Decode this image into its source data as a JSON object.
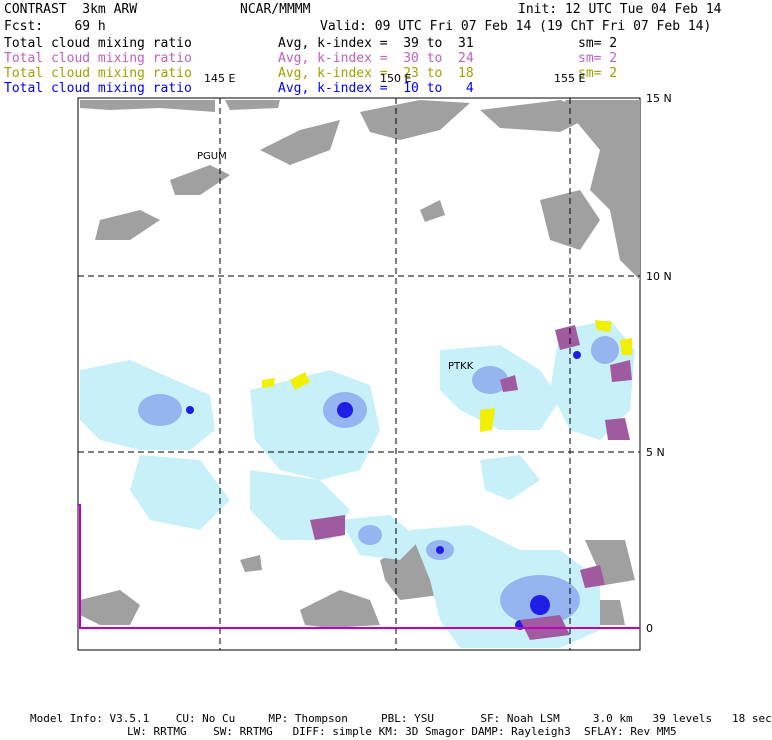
{
  "header": {
    "title": "CONTRAST  3km ARW",
    "org": "NCAR/MMMM",
    "init": "Init: 12 UTC Tue 04 Feb 14",
    "fcst": "Fcst:    69 h",
    "valid": "Valid: 09 UTC Fri 07 Feb 14 (19 ChT Fri 07 Feb 14)"
  },
  "legend": [
    {
      "field": "Total cloud mixing ratio",
      "range": "Avg, k-index =  39 to  31",
      "sm": "sm= 2",
      "color": "#000000"
    },
    {
      "field": "Total cloud mixing ratio",
      "range": "Avg, k-index =  30 to  24",
      "sm": "sm= 2",
      "color": "#c060c0"
    },
    {
      "field": "Total cloud mixing ratio",
      "range": "Avg, k-index =  23 to  18",
      "sm": "sm= 2",
      "color": "#a0a000"
    },
    {
      "field": "Total cloud mixing ratio",
      "range": "Avg, k-index =  10 to   4",
      "sm": "",
      "color": "#0000ff"
    }
  ],
  "map": {
    "lon_labels": [
      "145 E",
      "150 E",
      "155 E"
    ],
    "lat_labels": [
      "15 N",
      "10 N",
      "5 N",
      "0"
    ],
    "stations": [
      "PGUM",
      "PTKK"
    ],
    "colors": {
      "low_cloud": "#a0a0a0",
      "mid_cloud": "#a05aa0",
      "yellow_cloud": "#f0f000",
      "high_light": "#c8f0f8",
      "high_mid": "#96b4f0",
      "high_dark": "#1e1ee6",
      "boundary": "#c000c0"
    }
  },
  "footer": {
    "line1": "Model Info: V3.5.1    CU: No Cu     MP: Thompson     PBL: YSU       SF: Noah LSM     3.0 km   39 levels   18 sec",
    "line2": "LW: RRTMG    SW: RRTMG   DIFF: simple KM: 3D Smagor DAMP: Rayleigh3  SFLAY: Rev MM5"
  }
}
